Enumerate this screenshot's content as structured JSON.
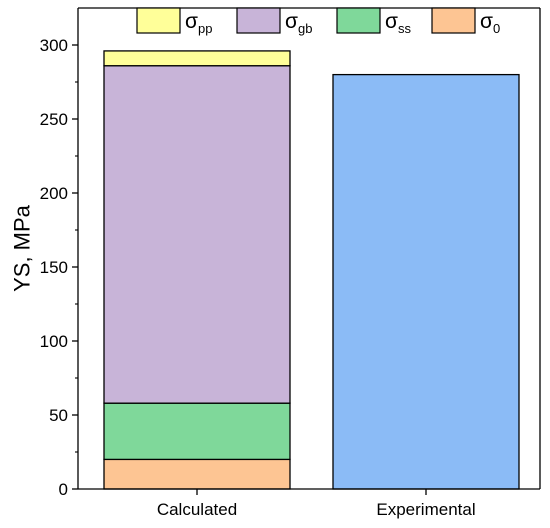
{
  "chart_data": {
    "type": "bar",
    "stacked": true,
    "title": "",
    "xlabel": "",
    "ylabel": "YS, MPa",
    "ylim": [
      0,
      325
    ],
    "yticks": [
      0,
      50,
      100,
      150,
      200,
      250,
      300
    ],
    "categories": [
      "Calculated",
      "Experimental"
    ],
    "grid": false,
    "legend_position": "top",
    "series": [
      {
        "name": "σ0",
        "base": "σ",
        "sub": "0",
        "color": "#fdc593",
        "values": [
          20,
          0
        ]
      },
      {
        "name": "σss",
        "base": "σ",
        "sub": "ss",
        "color": "#7fd89a",
        "values": [
          38,
          0
        ]
      },
      {
        "name": "σgb",
        "base": "σ",
        "sub": "gb",
        "color": "#c8b4d8",
        "values": [
          228,
          0
        ]
      },
      {
        "name": "σpp",
        "base": "σ",
        "sub": "pp",
        "color": "#ffff99",
        "values": [
          10,
          0
        ]
      },
      {
        "name": "",
        "base": "",
        "sub": "",
        "color": "#8bbbf6",
        "values": [
          0,
          280
        ]
      }
    ],
    "legend_order": [
      "σpp",
      "σgb",
      "σss",
      "σ0"
    ]
  }
}
